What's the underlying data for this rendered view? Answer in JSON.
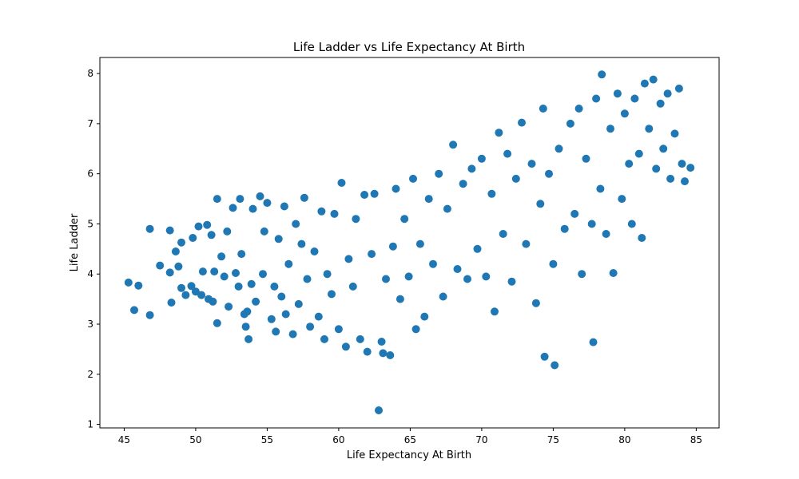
{
  "chart_data": {
    "type": "scatter",
    "title": "Life Ladder vs Life Expectancy At Birth",
    "xlabel": "Life Expectancy At Birth",
    "ylabel": "Life Ladder",
    "xlim": [
      43.3,
      86.6
    ],
    "ylim": [
      0.93,
      8.32
    ],
    "xticks": [
      45,
      50,
      55,
      60,
      65,
      70,
      75,
      80,
      85
    ],
    "yticks": [
      1,
      2,
      3,
      4,
      5,
      6,
      7,
      8
    ],
    "grid": false,
    "marker_color": "#1f77b4",
    "series": [
      {
        "points": [
          [
            45.3,
            3.83
          ],
          [
            46.0,
            3.77
          ],
          [
            45.7,
            3.28
          ],
          [
            46.8,
            3.18
          ],
          [
            46.8,
            4.9
          ],
          [
            47.5,
            4.17
          ],
          [
            48.2,
            4.03
          ],
          [
            48.2,
            4.87
          ],
          [
            48.3,
            3.43
          ],
          [
            48.6,
            4.45
          ],
          [
            48.8,
            4.15
          ],
          [
            49.0,
            4.63
          ],
          [
            49.0,
            3.72
          ],
          [
            49.3,
            3.58
          ],
          [
            49.7,
            3.76
          ],
          [
            49.8,
            4.72
          ],
          [
            50.0,
            3.65
          ],
          [
            50.2,
            4.95
          ],
          [
            50.4,
            3.58
          ],
          [
            50.5,
            4.05
          ],
          [
            50.8,
            4.98
          ],
          [
            50.9,
            3.5
          ],
          [
            51.1,
            4.78
          ],
          [
            51.2,
            3.45
          ],
          [
            51.3,
            4.05
          ],
          [
            51.5,
            5.5
          ],
          [
            51.5,
            3.02
          ],
          [
            51.8,
            4.35
          ],
          [
            52.0,
            3.95
          ],
          [
            52.2,
            4.85
          ],
          [
            52.3,
            3.35
          ],
          [
            52.6,
            5.32
          ],
          [
            52.8,
            4.02
          ],
          [
            53.0,
            3.75
          ],
          [
            53.1,
            5.5
          ],
          [
            53.2,
            4.4
          ],
          [
            53.4,
            3.2
          ],
          [
            53.5,
            2.95
          ],
          [
            53.6,
            3.25
          ],
          [
            53.7,
            2.7
          ],
          [
            53.9,
            3.8
          ],
          [
            54.0,
            5.3
          ],
          [
            54.2,
            3.45
          ],
          [
            54.5,
            5.55
          ],
          [
            54.7,
            4.0
          ],
          [
            54.8,
            4.85
          ],
          [
            55.0,
            5.42
          ],
          [
            55.3,
            3.1
          ],
          [
            55.5,
            3.75
          ],
          [
            55.6,
            2.85
          ],
          [
            55.8,
            4.7
          ],
          [
            56.0,
            3.55
          ],
          [
            56.2,
            5.35
          ],
          [
            56.3,
            3.2
          ],
          [
            56.5,
            4.2
          ],
          [
            56.8,
            2.8
          ],
          [
            57.0,
            5.0
          ],
          [
            57.2,
            3.4
          ],
          [
            57.4,
            4.6
          ],
          [
            57.6,
            5.52
          ],
          [
            57.8,
            3.9
          ],
          [
            58.0,
            2.95
          ],
          [
            58.3,
            4.45
          ],
          [
            58.6,
            3.15
          ],
          [
            58.8,
            5.25
          ],
          [
            59.0,
            2.7
          ],
          [
            59.2,
            4.0
          ],
          [
            59.5,
            3.6
          ],
          [
            59.7,
            5.2
          ],
          [
            60.0,
            2.9
          ],
          [
            60.2,
            5.82
          ],
          [
            60.5,
            2.55
          ],
          [
            60.7,
            4.3
          ],
          [
            61.0,
            3.75
          ],
          [
            61.2,
            5.1
          ],
          [
            61.5,
            2.7
          ],
          [
            61.8,
            5.58
          ],
          [
            62.0,
            2.45
          ],
          [
            62.3,
            4.4
          ],
          [
            62.5,
            5.6
          ],
          [
            62.8,
            1.28
          ],
          [
            63.0,
            2.65
          ],
          [
            63.1,
            2.42
          ],
          [
            63.3,
            3.9
          ],
          [
            63.6,
            2.38
          ],
          [
            63.8,
            4.55
          ],
          [
            64.0,
            5.7
          ],
          [
            64.3,
            3.5
          ],
          [
            64.6,
            5.1
          ],
          [
            64.9,
            3.95
          ],
          [
            65.2,
            5.9
          ],
          [
            65.4,
            2.9
          ],
          [
            65.7,
            4.6
          ],
          [
            66.0,
            3.15
          ],
          [
            66.3,
            5.5
          ],
          [
            66.6,
            4.2
          ],
          [
            67.0,
            6.0
          ],
          [
            67.3,
            3.55
          ],
          [
            67.6,
            5.3
          ],
          [
            68.0,
            6.58
          ],
          [
            68.3,
            4.1
          ],
          [
            68.7,
            5.8
          ],
          [
            69.0,
            3.9
          ],
          [
            69.3,
            6.1
          ],
          [
            69.7,
            4.5
          ],
          [
            70.0,
            6.3
          ],
          [
            70.3,
            3.95
          ],
          [
            70.7,
            5.6
          ],
          [
            70.9,
            3.25
          ],
          [
            71.2,
            6.82
          ],
          [
            71.5,
            4.8
          ],
          [
            71.8,
            6.4
          ],
          [
            72.1,
            3.85
          ],
          [
            72.4,
            5.9
          ],
          [
            72.8,
            7.02
          ],
          [
            73.1,
            4.6
          ],
          [
            73.5,
            6.2
          ],
          [
            73.8,
            3.42
          ],
          [
            74.1,
            5.4
          ],
          [
            74.3,
            7.3
          ],
          [
            74.4,
            2.35
          ],
          [
            74.7,
            6.0
          ],
          [
            75.0,
            4.2
          ],
          [
            75.1,
            2.18
          ],
          [
            75.4,
            6.5
          ],
          [
            75.8,
            4.9
          ],
          [
            76.2,
            7.0
          ],
          [
            76.5,
            5.2
          ],
          [
            76.8,
            7.3
          ],
          [
            77.0,
            4.0
          ],
          [
            77.3,
            6.3
          ],
          [
            77.7,
            5.0
          ],
          [
            77.8,
            2.64
          ],
          [
            78.0,
            7.5
          ],
          [
            78.3,
            5.7
          ],
          [
            78.4,
            7.98
          ],
          [
            78.7,
            4.8
          ],
          [
            79.0,
            6.9
          ],
          [
            79.2,
            4.02
          ],
          [
            79.5,
            7.6
          ],
          [
            79.8,
            5.5
          ],
          [
            80.0,
            7.2
          ],
          [
            80.3,
            6.2
          ],
          [
            80.5,
            5.0
          ],
          [
            80.7,
            7.5
          ],
          [
            81.0,
            6.4
          ],
          [
            81.2,
            4.72
          ],
          [
            81.4,
            7.8
          ],
          [
            81.7,
            6.9
          ],
          [
            82.0,
            7.88
          ],
          [
            82.2,
            6.1
          ],
          [
            82.5,
            7.4
          ],
          [
            82.7,
            6.5
          ],
          [
            83.0,
            7.6
          ],
          [
            83.2,
            5.9
          ],
          [
            83.5,
            6.8
          ],
          [
            83.8,
            7.7
          ],
          [
            84.0,
            6.2
          ],
          [
            84.2,
            5.85
          ],
          [
            84.6,
            6.12
          ]
        ]
      }
    ]
  }
}
